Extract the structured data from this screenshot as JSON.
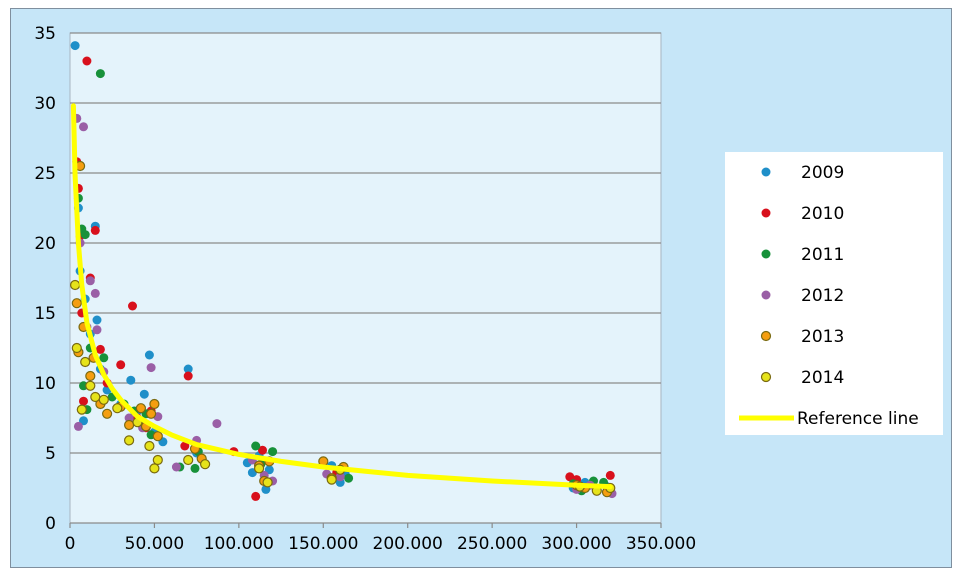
{
  "chart_data": {
    "type": "scatter",
    "title": "",
    "xlabel": "",
    "ylabel": "",
    "xlim": [
      0,
      350000
    ],
    "ylim": [
      0,
      35
    ],
    "x_ticks": [
      0,
      50000,
      100000,
      150000,
      200000,
      250000,
      300000,
      350000
    ],
    "x_tick_labels": [
      "0",
      "50.000",
      "100.000",
      "150.000",
      "200.000",
      "250.000",
      "300.000",
      "350.000"
    ],
    "y_ticks": [
      0,
      5,
      10,
      15,
      20,
      25,
      30,
      35
    ],
    "y_tick_labels": [
      "0",
      "5",
      "10",
      "15",
      "20",
      "25",
      "30",
      "35"
    ],
    "grid": "horizontal",
    "legend_position": "right",
    "series": [
      {
        "name": "2009",
        "color": "#1f8fc9",
        "marker": "filled-circle",
        "points": [
          [
            3000,
            34.1
          ],
          [
            5000,
            22.5
          ],
          [
            6000,
            18.0
          ],
          [
            8000,
            7.3
          ],
          [
            9000,
            16.0
          ],
          [
            12000,
            13.5
          ],
          [
            15000,
            21.2
          ],
          [
            16000,
            14.5
          ],
          [
            18000,
            11.0
          ],
          [
            22000,
            9.5
          ],
          [
            30000,
            8.5
          ],
          [
            36000,
            10.2
          ],
          [
            40000,
            8.0
          ],
          [
            44000,
            9.2
          ],
          [
            47000,
            12.0
          ],
          [
            50000,
            6.5
          ],
          [
            55000,
            5.8
          ],
          [
            70000,
            11.0
          ],
          [
            75000,
            5.0
          ],
          [
            105000,
            4.3
          ],
          [
            108000,
            3.6
          ],
          [
            112000,
            4.8
          ],
          [
            116000,
            2.4
          ],
          [
            118000,
            3.8
          ],
          [
            155000,
            4.1
          ],
          [
            160000,
            2.9
          ],
          [
            163000,
            3.5
          ],
          [
            298000,
            2.5
          ],
          [
            305000,
            2.9
          ],
          [
            312000,
            2.4
          ],
          [
            318000,
            2.6
          ]
        ]
      },
      {
        "name": "2010",
        "color": "#d8101c",
        "marker": "filled-circle",
        "points": [
          [
            4000,
            25.8
          ],
          [
            5000,
            23.9
          ],
          [
            6000,
            20.5
          ],
          [
            7000,
            15.0
          ],
          [
            8000,
            8.7
          ],
          [
            10000,
            33.0
          ],
          [
            12000,
            17.5
          ],
          [
            15000,
            20.9
          ],
          [
            18000,
            12.4
          ],
          [
            22000,
            10.0
          ],
          [
            30000,
            11.3
          ],
          [
            37000,
            15.5
          ],
          [
            40000,
            7.5
          ],
          [
            45000,
            6.8
          ],
          [
            48000,
            8.0
          ],
          [
            68000,
            5.5
          ],
          [
            70000,
            10.5
          ],
          [
            97000,
            5.1
          ],
          [
            110000,
            1.9
          ],
          [
            114000,
            5.2
          ],
          [
            158000,
            3.6
          ],
          [
            296000,
            3.3
          ],
          [
            300000,
            3.1
          ],
          [
            320000,
            3.4
          ]
        ]
      },
      {
        "name": "2011",
        "color": "#17913a",
        "marker": "filled-circle",
        "points": [
          [
            5000,
            23.2
          ],
          [
            7000,
            21.0
          ],
          [
            8000,
            9.8
          ],
          [
            9000,
            20.6
          ],
          [
            10000,
            8.1
          ],
          [
            12000,
            12.5
          ],
          [
            18000,
            32.1
          ],
          [
            20000,
            11.8
          ],
          [
            25000,
            9.0
          ],
          [
            32000,
            8.5
          ],
          [
            38000,
            8.0
          ],
          [
            45000,
            7.8
          ],
          [
            48000,
            6.3
          ],
          [
            65000,
            4.0
          ],
          [
            74000,
            3.9
          ],
          [
            76000,
            5.1
          ],
          [
            110000,
            5.5
          ],
          [
            113000,
            4.2
          ],
          [
            120000,
            5.1
          ],
          [
            160000,
            3.8
          ],
          [
            165000,
            3.2
          ],
          [
            298000,
            2.8
          ],
          [
            303000,
            2.3
          ],
          [
            310000,
            3.0
          ],
          [
            316000,
            2.9
          ]
        ]
      },
      {
        "name": "2012",
        "color": "#9a5fa6",
        "marker": "filled-circle",
        "points": [
          [
            4000,
            28.9
          ],
          [
            5000,
            6.9
          ],
          [
            6000,
            20.0
          ],
          [
            8000,
            28.3
          ],
          [
            10000,
            14.0
          ],
          [
            12000,
            17.3
          ],
          [
            15000,
            16.4
          ],
          [
            16000,
            13.8
          ],
          [
            20000,
            10.8
          ],
          [
            28000,
            8.2
          ],
          [
            35000,
            7.5
          ],
          [
            43000,
            6.8
          ],
          [
            48000,
            11.1
          ],
          [
            52000,
            7.6
          ],
          [
            63000,
            4.0
          ],
          [
            75000,
            5.9
          ],
          [
            87000,
            7.1
          ],
          [
            108000,
            4.5
          ],
          [
            115000,
            3.4
          ],
          [
            120000,
            3.0
          ],
          [
            152000,
            3.5
          ],
          [
            160000,
            3.3
          ],
          [
            300000,
            2.4
          ],
          [
            308000,
            2.7
          ],
          [
            321000,
            2.1
          ]
        ]
      },
      {
        "name": "2013",
        "color": "#f59e10",
        "marker": "outlined-circle",
        "points": [
          [
            4000,
            15.7
          ],
          [
            5000,
            12.2
          ],
          [
            6000,
            25.5
          ],
          [
            8000,
            14.0
          ],
          [
            12000,
            10.5
          ],
          [
            14000,
            11.8
          ],
          [
            18000,
            8.5
          ],
          [
            22000,
            7.8
          ],
          [
            30000,
            8.3
          ],
          [
            35000,
            7.0
          ],
          [
            42000,
            8.2
          ],
          [
            45000,
            6.9
          ],
          [
            48000,
            7.8
          ],
          [
            50000,
            8.5
          ],
          [
            52000,
            6.2
          ],
          [
            74000,
            5.3
          ],
          [
            78000,
            4.6
          ],
          [
            112000,
            4.1
          ],
          [
            115000,
            3.0
          ],
          [
            118000,
            4.4
          ],
          [
            150000,
            4.4
          ],
          [
            155000,
            3.2
          ],
          [
            162000,
            4.0
          ],
          [
            300000,
            2.7
          ],
          [
            305000,
            2.5
          ],
          [
            318000,
            2.2
          ]
        ]
      },
      {
        "name": "2014",
        "color": "#e6e31a",
        "marker": "outlined-circle",
        "points": [
          [
            3000,
            17.0
          ],
          [
            4000,
            12.5
          ],
          [
            7000,
            8.1
          ],
          [
            9000,
            11.5
          ],
          [
            12000,
            9.8
          ],
          [
            15000,
            9.0
          ],
          [
            20000,
            8.8
          ],
          [
            28000,
            8.2
          ],
          [
            35000,
            5.9
          ],
          [
            40000,
            7.2
          ],
          [
            47000,
            5.5
          ],
          [
            50000,
            3.9
          ],
          [
            52000,
            4.5
          ],
          [
            70000,
            4.5
          ],
          [
            80000,
            4.2
          ],
          [
            112000,
            3.9
          ],
          [
            117000,
            2.9
          ],
          [
            155000,
            3.1
          ],
          [
            160000,
            3.8
          ],
          [
            302000,
            2.6
          ],
          [
            312000,
            2.3
          ],
          [
            320000,
            2.5
          ]
        ]
      },
      {
        "name": "Reference line",
        "color": "#ffff00",
        "marker": "line",
        "points": [
          [
            2000,
            29.8
          ],
          [
            3000,
            24.8
          ],
          [
            5000,
            20.0
          ],
          [
            7000,
            17.0
          ],
          [
            10000,
            14.3
          ],
          [
            15000,
            12.0
          ],
          [
            20000,
            10.6
          ],
          [
            25000,
            9.6
          ],
          [
            30000,
            8.8
          ],
          [
            40000,
            7.6
          ],
          [
            50000,
            6.9
          ],
          [
            60000,
            6.3
          ],
          [
            75000,
            5.6
          ],
          [
            100000,
            4.9
          ],
          [
            125000,
            4.4
          ],
          [
            150000,
            4.0
          ],
          [
            175000,
            3.7
          ],
          [
            200000,
            3.4
          ],
          [
            250000,
            3.0
          ],
          [
            300000,
            2.7
          ],
          [
            320000,
            2.6
          ]
        ]
      }
    ]
  }
}
